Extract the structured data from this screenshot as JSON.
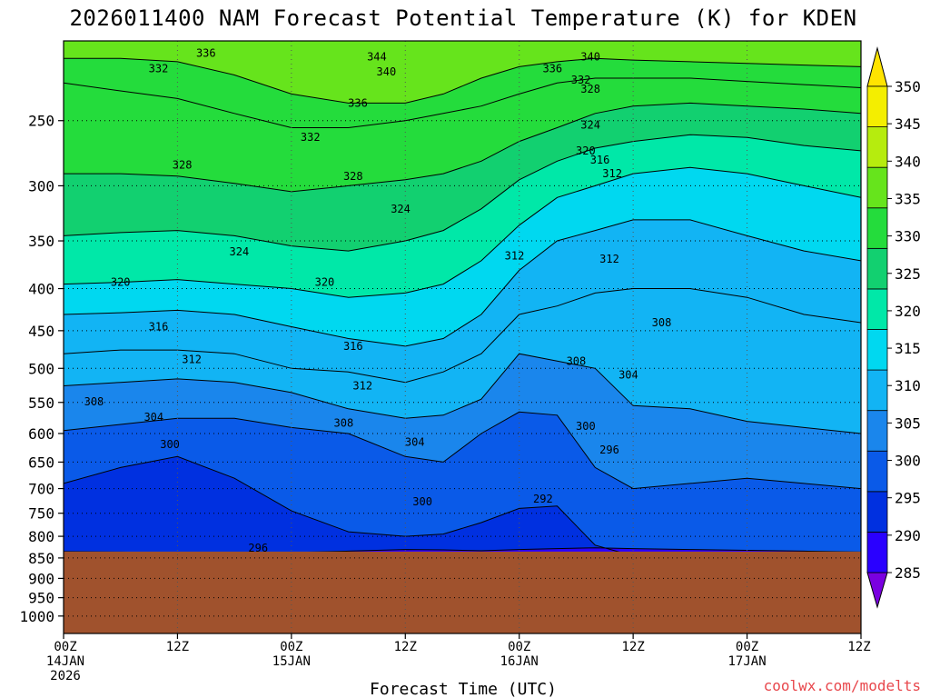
{
  "chart_data": {
    "type": "heatmap",
    "title": "2026011400 NAM Forecast Potential Temperature (K) for KDEN",
    "xlabel": "Forecast Time (UTC)",
    "ylabel": "",
    "y_scale": "log-pressure",
    "ylim": [
      1050,
      200
    ],
    "xlim": [
      0,
      84
    ],
    "grid": true,
    "legend": "right colorbar",
    "y_ticks": [
      250,
      300,
      350,
      400,
      450,
      500,
      550,
      600,
      650,
      700,
      750,
      800,
      850,
      900,
      950,
      1000
    ],
    "x_ticks": [
      {
        "hour": 0,
        "label1": "00Z",
        "label2": "14JAN",
        "label3": "2026"
      },
      {
        "hour": 12,
        "label1": "12Z",
        "label2": "",
        "label3": ""
      },
      {
        "hour": 24,
        "label1": "00Z",
        "label2": "15JAN",
        "label3": ""
      },
      {
        "hour": 36,
        "label1": "12Z",
        "label2": "",
        "label3": ""
      },
      {
        "hour": 48,
        "label1": "00Z",
        "label2": "16JAN",
        "label3": ""
      },
      {
        "hour": 60,
        "label1": "12Z",
        "label2": "",
        "label3": ""
      },
      {
        "hour": 72,
        "label1": "00Z",
        "label2": "17JAN",
        "label3": ""
      },
      {
        "hour": 84,
        "label1": "12Z",
        "label2": "",
        "label3": ""
      }
    ],
    "colorbar": {
      "levels": [
        285,
        290,
        295,
        300,
        305,
        310,
        315,
        320,
        325,
        330,
        335,
        340,
        345,
        350
      ],
      "labels": [
        "350",
        "345",
        "340",
        "335",
        "330",
        "325",
        "320",
        "315",
        "310",
        "305",
        "300",
        "295",
        "290",
        "285"
      ],
      "colors": [
        "#7a00e0",
        "#2a00ff",
        "#0030e0",
        "#0a5ae8",
        "#1a86ec",
        "#12b4f4",
        "#00d8f0",
        "#00e8a8",
        "#12d070",
        "#24dc3c",
        "#66e41c",
        "#b6ec0e",
        "#f4ee00",
        "#ffe400"
      ]
    },
    "surface_pressure_hpa": 835,
    "surface_color": "#a0522d",
    "profile_hours": [
      0,
      6,
      12,
      18,
      24,
      30,
      36,
      40,
      44,
      48,
      52,
      56,
      60,
      66,
      72,
      78,
      84
    ],
    "isentropes": [
      {
        "theta": 296,
        "p": [
          835,
          836,
          838,
          840,
          837,
          834,
          830,
          831,
          833,
          830,
          828,
          826,
          828,
          830,
          832,
          834,
          836
        ]
      },
      {
        "theta": 300,
        "p": [
          690,
          660,
          640,
          680,
          745,
          790,
          800,
          795,
          770,
          740,
          735,
          820,
          845,
          850,
          850,
          850,
          850
        ]
      },
      {
        "theta": 304,
        "p": [
          595,
          585,
          575,
          575,
          590,
          600,
          640,
          650,
          600,
          565,
          570,
          660,
          700,
          690,
          680,
          690,
          700
        ]
      },
      {
        "theta": 308,
        "p": [
          525,
          520,
          515,
          520,
          535,
          560,
          575,
          570,
          545,
          480,
          490,
          500,
          555,
          560,
          580,
          590,
          600
        ]
      },
      {
        "theta": 312,
        "p": [
          480,
          475,
          475,
          480,
          500,
          505,
          520,
          505,
          480,
          430,
          420,
          405,
          400,
          400,
          410,
          430,
          440
        ]
      },
      {
        "theta": 316,
        "p": [
          430,
          428,
          425,
          430,
          445,
          460,
          470,
          460,
          430,
          380,
          350,
          340,
          330,
          330,
          345,
          360,
          370
        ]
      },
      {
        "theta": 320,
        "p": [
          395,
          393,
          390,
          395,
          400,
          410,
          405,
          395,
          370,
          335,
          310,
          300,
          290,
          285,
          290,
          300,
          310
        ]
      },
      {
        "theta": 324,
        "p": [
          345,
          342,
          340,
          345,
          355,
          360,
          350,
          340,
          320,
          295,
          280,
          270,
          265,
          260,
          262,
          268,
          272
        ]
      },
      {
        "theta": 328,
        "p": [
          290,
          290,
          292,
          298,
          305,
          300,
          295,
          290,
          280,
          265,
          255,
          245,
          240,
          238,
          240,
          242,
          245
        ]
      },
      {
        "theta": 332,
        "p": [
          225,
          230,
          235,
          245,
          255,
          255,
          250,
          245,
          240,
          232,
          225,
          222,
          222,
          222,
          224,
          226,
          228
        ]
      },
      {
        "theta": 336,
        "p": [
          210,
          210,
          212,
          220,
          232,
          238,
          238,
          232,
          222,
          215,
          212,
          210,
          211,
          212,
          213,
          214,
          215
        ]
      }
    ],
    "contour_labels": [
      {
        "text": "336",
        "hour": 15,
        "p": 207
      },
      {
        "text": "332",
        "hour": 10,
        "p": 216
      },
      {
        "text": "344",
        "hour": 33,
        "p": 209
      },
      {
        "text": "340",
        "hour": 34,
        "p": 218
      },
      {
        "text": "336",
        "hour": 31,
        "p": 238
      },
      {
        "text": "332",
        "hour": 26,
        "p": 262
      },
      {
        "text": "328",
        "hour": 12.5,
        "p": 283
      },
      {
        "text": "328",
        "hour": 30.5,
        "p": 292
      },
      {
        "text": "324",
        "hour": 35.5,
        "p": 320
      },
      {
        "text": "324",
        "hour": 18.5,
        "p": 361
      },
      {
        "text": "320",
        "hour": 6,
        "p": 393
      },
      {
        "text": "320",
        "hour": 27.5,
        "p": 393
      },
      {
        "text": "316",
        "hour": 10,
        "p": 445
      },
      {
        "text": "316",
        "hour": 30.5,
        "p": 470
      },
      {
        "text": "312",
        "hour": 13.5,
        "p": 488
      },
      {
        "text": "312",
        "hour": 31.5,
        "p": 525
      },
      {
        "text": "308",
        "hour": 3.2,
        "p": 549
      },
      {
        "text": "308",
        "hour": 29.5,
        "p": 583
      },
      {
        "text": "304",
        "hour": 9.5,
        "p": 573
      },
      {
        "text": "304",
        "hour": 37,
        "p": 615
      },
      {
        "text": "300",
        "hour": 11.2,
        "p": 619
      },
      {
        "text": "300",
        "hour": 37.8,
        "p": 726
      },
      {
        "text": "296",
        "hour": 20.5,
        "p": 827
      },
      {
        "text": "312",
        "hour": 47.5,
        "p": 365
      },
      {
        "text": "312",
        "hour": 57.5,
        "p": 368
      },
      {
        "text": "308",
        "hour": 54,
        "p": 490
      },
      {
        "text": "308",
        "hour": 63,
        "p": 440
      },
      {
        "text": "304",
        "hour": 59.5,
        "p": 509
      },
      {
        "text": "300",
        "hour": 55,
        "p": 588
      },
      {
        "text": "296",
        "hour": 57.5,
        "p": 628
      },
      {
        "text": "292",
        "hour": 50.5,
        "p": 721
      },
      {
        "text": "316",
        "hour": 56.5,
        "p": 279
      },
      {
        "text": "320",
        "hour": 55,
        "p": 272
      },
      {
        "text": "324",
        "hour": 55.5,
        "p": 253
      },
      {
        "text": "328",
        "hour": 55.5,
        "p": 229
      },
      {
        "text": "332",
        "hour": 54.5,
        "p": 223
      },
      {
        "text": "336",
        "hour": 51.5,
        "p": 216
      },
      {
        "text": "340",
        "hour": 55.5,
        "p": 209
      },
      {
        "text": "312",
        "hour": 57.8,
        "p": 290
      }
    ]
  },
  "credit": "coolwx.com/modelts"
}
